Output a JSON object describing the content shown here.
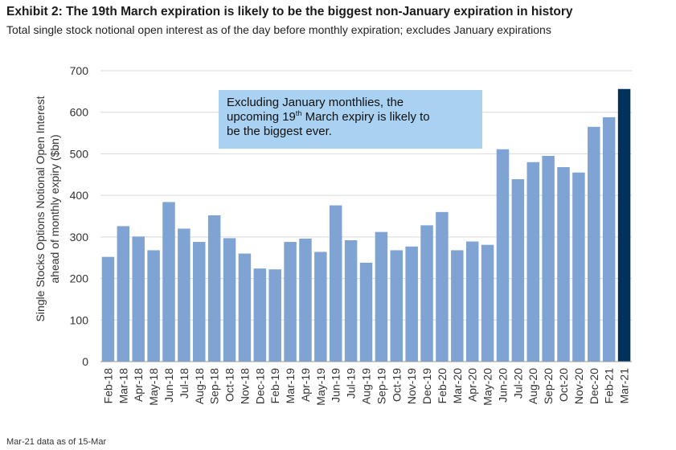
{
  "header": {
    "title": "Exhibit 2: The 19th March expiration is likely to be the biggest non-January expiration in history",
    "subtitle": "Total single stock notional open interest as of the day before monthly expiration; excludes January expirations"
  },
  "footnote": "Mar-21 data as of 15-Mar",
  "annotation": {
    "line1": "Excluding January monthlies, the",
    "line2_pre": "upcoming 19",
    "line2_sup": "th",
    "line2_post": " March expiry is likely to",
    "line3": "be the biggest ever."
  },
  "chart_data": {
    "type": "bar",
    "title": "Exhibit 2: The 19th March expiration is likely to be the biggest non-January expiration in history",
    "ylabel_line1": "Single Stocks Options Notional Open Interest",
    "ylabel_line2": "ahead of monthly expiry ($bn)",
    "xlabel": "",
    "ylim": [
      0,
      700
    ],
    "yticks": [
      0,
      100,
      200,
      300,
      400,
      500,
      600,
      700
    ],
    "categories": [
      "Feb-18",
      "Mar-18",
      "Apr-18",
      "May-18",
      "Jun-18",
      "Jul-18",
      "Aug-18",
      "Sep-18",
      "Oct-18",
      "Nov-18",
      "Dec-18",
      "Feb-19",
      "Mar-19",
      "Apr-19",
      "May-19",
      "Jun-19",
      "Jul-19",
      "Aug-19",
      "Sep-19",
      "Oct-19",
      "Nov-19",
      "Dec-19",
      "Feb-20",
      "Mar-20",
      "Apr-20",
      "May-20",
      "Jun-20",
      "Jul-20",
      "Aug-20",
      "Sep-20",
      "Oct-20",
      "Nov-20",
      "Dec-20",
      "Feb-21",
      "Mar-21"
    ],
    "values": [
      252,
      326,
      301,
      268,
      384,
      320,
      288,
      352,
      297,
      260,
      224,
      222,
      288,
      296,
      264,
      376,
      292,
      238,
      312,
      268,
      277,
      328,
      360,
      268,
      289,
      281,
      511,
      439,
      480,
      495,
      468,
      455,
      565,
      588,
      656
    ],
    "highlight_index": 34,
    "colors": {
      "bar": "#7fa4d3",
      "highlight": "#00325b",
      "grid": "#d9d9d9"
    }
  }
}
